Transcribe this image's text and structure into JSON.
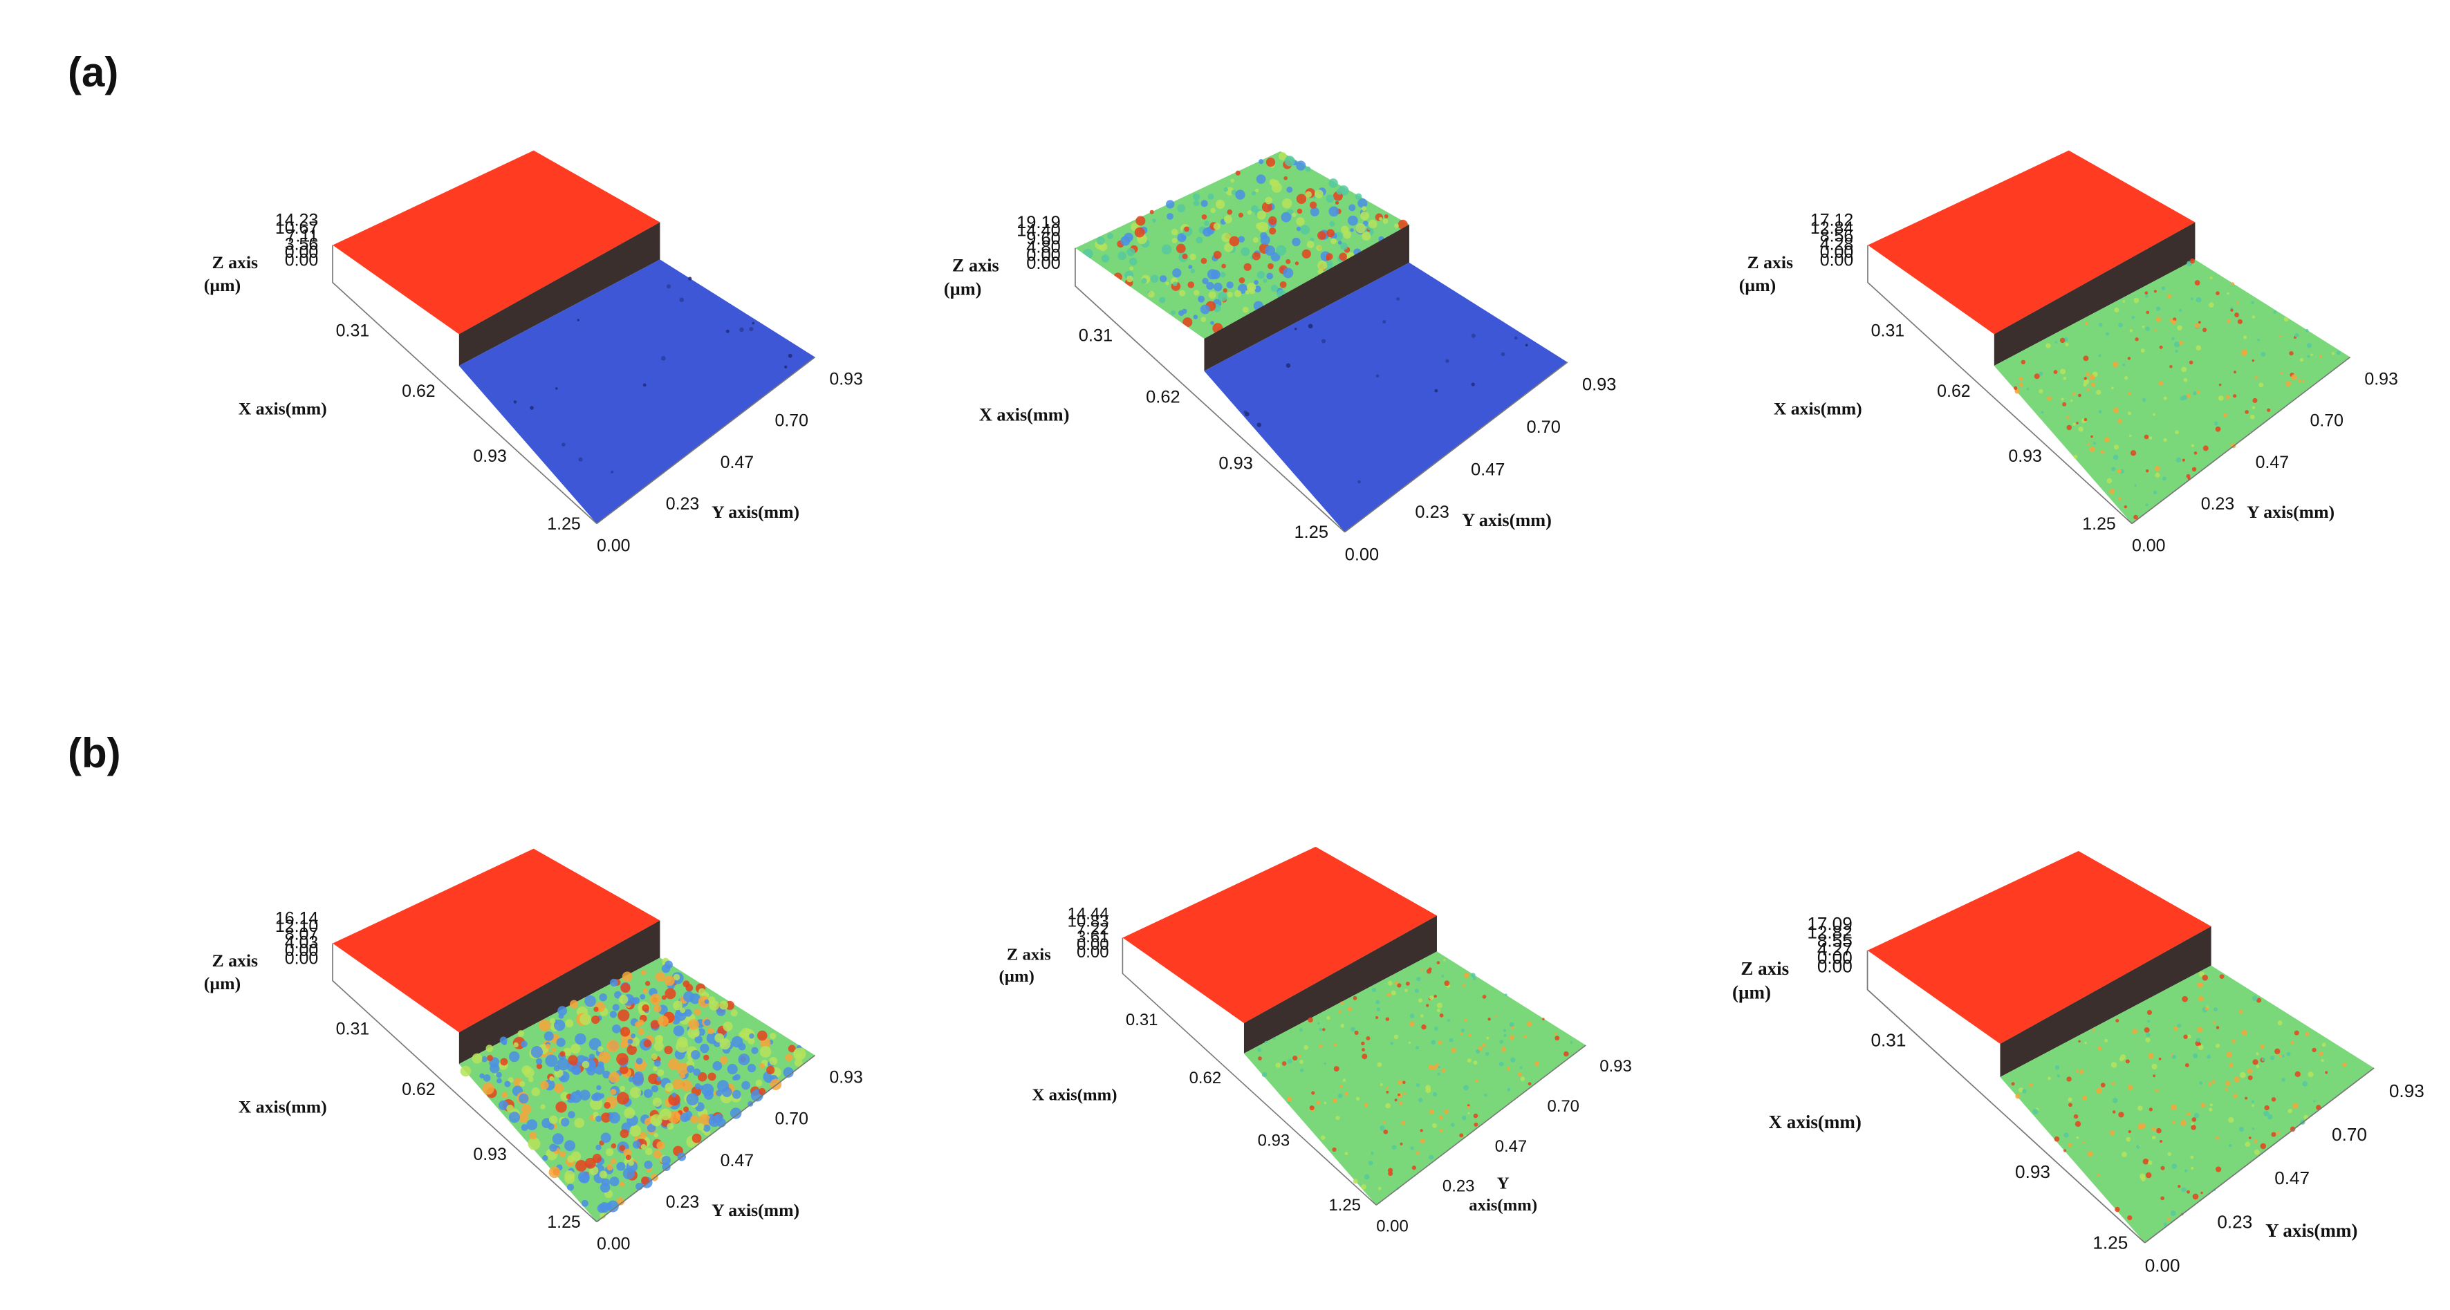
{
  "panel_labels": {
    "a": "(a)",
    "b": "(b)"
  },
  "colors": {
    "top_surface": "#ff3b22",
    "step_wall": "#3a2f2c",
    "blue_surface": "#3d57d6",
    "green_surface": "#7ad87a",
    "speckle_red": "#e8421c",
    "speckle_blue": "#4b8fe6"
  },
  "plots": [
    {
      "id": "a1",
      "z_title": [
        "Z axis",
        "(µm)"
      ],
      "z_ticks": [
        "14.23",
        "10.67",
        "7.11",
        "3.56",
        "0.00",
        "0.00"
      ],
      "x_title": "X axis(mm)",
      "x_ticks": [
        "0.31",
        "0.62",
        "0.93",
        "1.25"
      ],
      "y_title": "Y axis(mm)",
      "y_ticks": [
        "0.00",
        "0.23",
        "0.47",
        "0.70",
        "0.93"
      ],
      "top_surface": "red",
      "lower_surface": "blue"
    },
    {
      "id": "a2",
      "z_title": [
        "Z axis",
        "(µm)"
      ],
      "z_ticks": [
        "19.19",
        "14.40",
        "9.60",
        "4.80",
        "0.00",
        "0.00"
      ],
      "x_title": "X axis(mm)",
      "x_ticks": [
        "0.31",
        "0.62",
        "0.93",
        "1.25"
      ],
      "y_title": "Y axis(mm)",
      "y_ticks": [
        "0.00",
        "0.23",
        "0.47",
        "0.70",
        "0.93"
      ],
      "top_surface": "green-speckled",
      "lower_surface": "blue"
    },
    {
      "id": "a3",
      "z_title": [
        "Z axis",
        "(µm)"
      ],
      "z_ticks": [
        "17.12",
        "12.84",
        "8.56",
        "4.28",
        "0.00",
        "0.00"
      ],
      "x_title": "X axis(mm)",
      "x_ticks": [
        "0.31",
        "0.62",
        "0.93",
        "1.25"
      ],
      "y_title": "Y axis(mm)",
      "y_ticks": [
        "0.00",
        "0.23",
        "0.47",
        "0.70",
        "0.93"
      ],
      "top_surface": "red",
      "lower_surface": "green"
    },
    {
      "id": "b1",
      "z_title": [
        "Z axis",
        "(µm)"
      ],
      "z_ticks": [
        "16.14",
        "12.10",
        "8.07",
        "4.03",
        "0.00",
        "0.00"
      ],
      "x_title": "X axis(mm)",
      "x_ticks": [
        "0.31",
        "0.62",
        "0.93",
        "1.25"
      ],
      "y_title": "Y axis(mm)",
      "y_ticks": [
        "0.00",
        "0.23",
        "0.47",
        "0.70",
        "0.93"
      ],
      "top_surface": "red",
      "lower_surface": "green-speckled-heavy"
    },
    {
      "id": "b2",
      "z_title": [
        "Z axis",
        "(µm)"
      ],
      "z_ticks": [
        "14.44",
        "10.83",
        "7.22",
        "3.61",
        "0.00",
        "0.00"
      ],
      "x_title": "X axis(mm)",
      "x_ticks": [
        "0.31",
        "0.62",
        "0.93",
        "1.25"
      ],
      "y_title": [
        "Y",
        "axis(mm)"
      ],
      "y_ticks": [
        "0.00",
        "0.23",
        "0.47",
        "0.70",
        "0.93"
      ],
      "top_surface": "red",
      "lower_surface": "green"
    },
    {
      "id": "b3",
      "z_title": [
        "Z axis",
        "(µm)"
      ],
      "z_ticks": [
        "17.09",
        "12.82",
        "8.55",
        "4.27",
        "0.00",
        "0.00"
      ],
      "x_title": "X axis(mm)",
      "x_ticks": [
        "0.31",
        "0.93",
        "1.25"
      ],
      "y_title": "Y axis(mm)",
      "y_ticks": [
        "0.00",
        "0.23",
        "0.47",
        "0.70",
        "0.93"
      ],
      "top_surface": "red",
      "lower_surface": "green"
    }
  ]
}
